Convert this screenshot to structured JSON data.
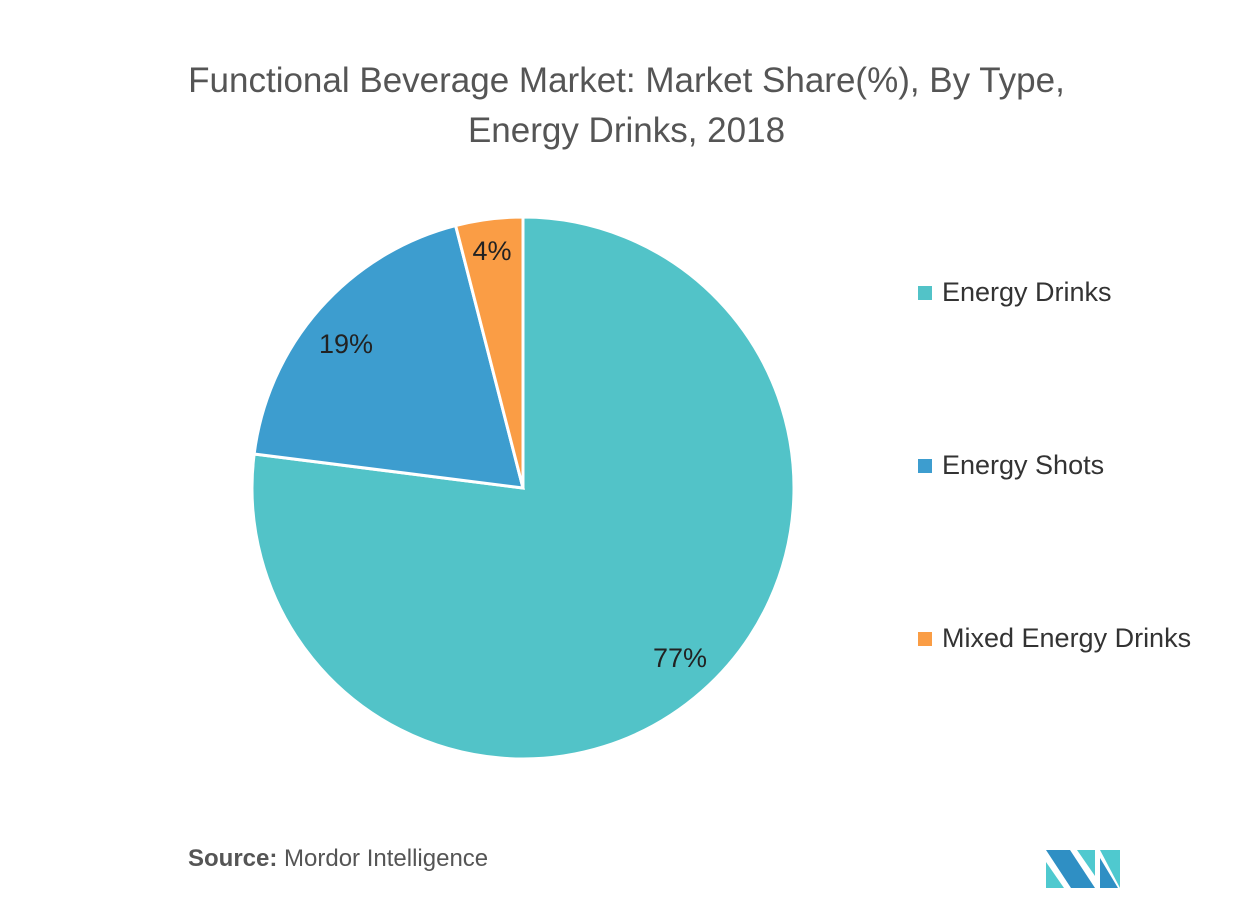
{
  "chart_data": {
    "type": "pie",
    "title": "Functional Beverage Market: Market Share(%), By Type,",
    "title_line2": "Energy Drinks, 2018",
    "slices": [
      {
        "label": "Energy Drinks",
        "value": 77,
        "data_label": "77%",
        "color": "#52c3c8"
      },
      {
        "label": "Energy Shots",
        "value": 19,
        "data_label": "19%",
        "color": "#3d9dcf"
      },
      {
        "label": "Mixed Energy Drinks",
        "value": 4,
        "data_label": "4%",
        "color": "#fa9d45"
      }
    ],
    "legend_position": "right"
  },
  "source": {
    "label": "Source:",
    "text": "Mordor Intelligence"
  }
}
